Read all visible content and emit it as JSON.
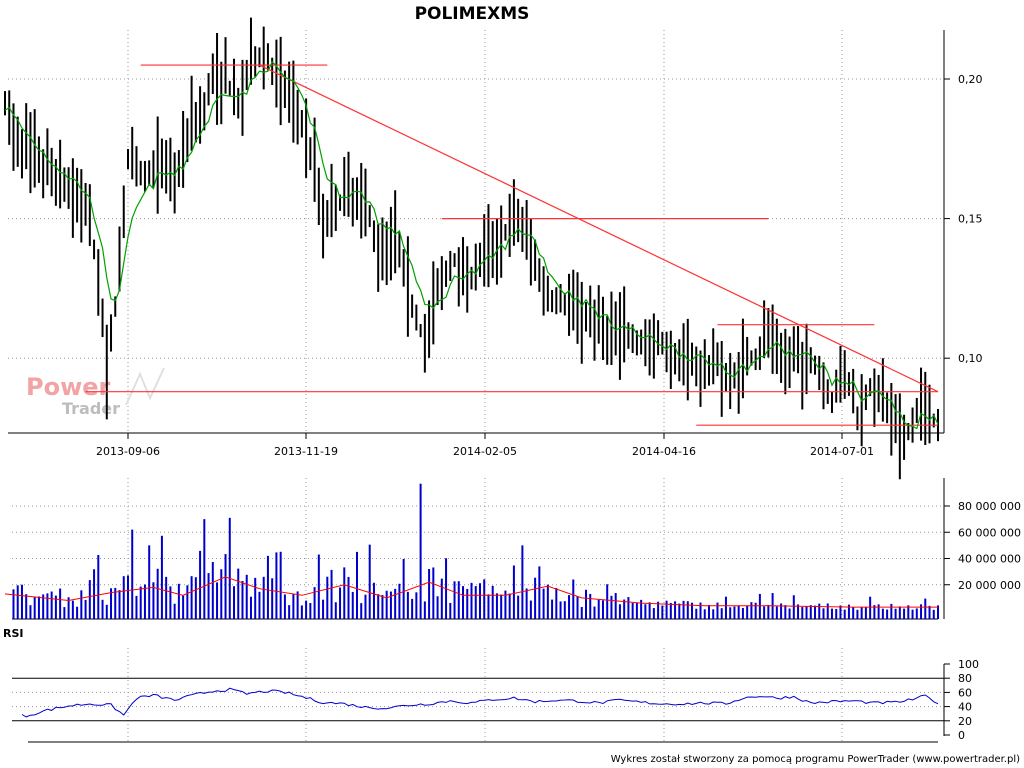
{
  "chart_data": [
    {
      "type": "line",
      "chart_kind": "ohlc-bars-with-moving-average",
      "title": "POLIMEXMS",
      "x_tick_labels": [
        "2013-09-06",
        "2013-11-19",
        "2014-02-05",
        "2014-04-16",
        "2014-07-01"
      ],
      "y_tick_labels": [
        "0,20",
        "0,15",
        "0,10"
      ],
      "y_ticks": [
        0.2,
        0.15,
        0.1
      ],
      "ylim": [
        0.045,
        0.215
      ],
      "grid": true,
      "colors": {
        "bars": "#000000",
        "moving_average": "#00a000",
        "trendlines": "#ff3333"
      },
      "price_path": [
        [
          0,
          0.19
        ],
        [
          2,
          0.18
        ],
        [
          5,
          0.175
        ],
        [
          8,
          0.17
        ],
        [
          12,
          0.165
        ],
        [
          16,
          0.16
        ],
        [
          19,
          0.155
        ],
        [
          22,
          0.13
        ],
        [
          24,
          0.095
        ],
        [
          26,
          0.12
        ],
        [
          29,
          0.17
        ],
        [
          33,
          0.165
        ],
        [
          36,
          0.17
        ],
        [
          40,
          0.165
        ],
        [
          44,
          0.185
        ],
        [
          47,
          0.19
        ],
        [
          49,
          0.2
        ],
        [
          52,
          0.2
        ],
        [
          55,
          0.19
        ],
        [
          58,
          0.205
        ],
        [
          61,
          0.21
        ],
        [
          64,
          0.2
        ],
        [
          67,
          0.195
        ],
        [
          70,
          0.185
        ],
        [
          73,
          0.17
        ],
        [
          75,
          0.15
        ],
        [
          78,
          0.155
        ],
        [
          82,
          0.16
        ],
        [
          85,
          0.155
        ],
        [
          88,
          0.14
        ],
        [
          92,
          0.145
        ],
        [
          96,
          0.12
        ],
        [
          99,
          0.105
        ],
        [
          102,
          0.125
        ],
        [
          106,
          0.135
        ],
        [
          110,
          0.13
        ],
        [
          114,
          0.14
        ],
        [
          118,
          0.145
        ],
        [
          121,
          0.15
        ],
        [
          124,
          0.14
        ],
        [
          127,
          0.125
        ],
        [
          130,
          0.12
        ],
        [
          134,
          0.12
        ],
        [
          138,
          0.115
        ],
        [
          142,
          0.11
        ],
        [
          146,
          0.11
        ],
        [
          150,
          0.105
        ],
        [
          154,
          0.105
        ],
        [
          158,
          0.1
        ],
        [
          162,
          0.1
        ],
        [
          165,
          0.095
        ],
        [
          168,
          0.1
        ],
        [
          171,
          0.09
        ],
        [
          174,
          0.1
        ],
        [
          177,
          0.1
        ],
        [
          180,
          0.11
        ],
        [
          183,
          0.1
        ],
        [
          186,
          0.1
        ],
        [
          189,
          0.1
        ],
        [
          192,
          0.095
        ],
        [
          195,
          0.085
        ],
        [
          198,
          0.095
        ],
        [
          201,
          0.08
        ],
        [
          204,
          0.09
        ],
        [
          207,
          0.085
        ],
        [
          210,
          0.075
        ],
        [
          212,
          0.07
        ],
        [
          214,
          0.075
        ],
        [
          216,
          0.085
        ],
        [
          218,
          0.08
        ],
        [
          220,
          0.075
        ]
      ],
      "trendlines": [
        {
          "name": "resistance-2013-10",
          "x": [
            32,
            76
          ],
          "y": [
            0.205,
            0.205
          ]
        },
        {
          "name": "resistance-2014-02",
          "x": [
            103,
            180
          ],
          "y": [
            0.15,
            0.15
          ]
        },
        {
          "name": "resistance-2014-05",
          "x": [
            168,
            205
          ],
          "y": [
            0.112,
            0.112
          ]
        },
        {
          "name": "downtrend",
          "x": [
            60,
            220
          ],
          "y": [
            0.205,
            0.088
          ]
        },
        {
          "name": "support-high",
          "x": [
            19,
            220
          ],
          "y": [
            0.088,
            0.088
          ]
        },
        {
          "name": "support-low",
          "x": [
            163,
            220
          ],
          "y": [
            0.076,
            0.076
          ]
        }
      ]
    },
    {
      "type": "bar",
      "chart_kind": "volume-with-moving-average",
      "y_tick_labels": [
        "80 000 000",
        "60 000 000",
        "40 000 000",
        "20 000 000"
      ],
      "y_ticks": [
        80000000,
        60000000,
        40000000,
        20000000
      ],
      "ylim": [
        0,
        100000000
      ],
      "grid": true,
      "colors": {
        "bars": "#0000cc",
        "moving_average": "#ff0000"
      },
      "spikes": [
        [
          30,
          62000000
        ],
        [
          34,
          50000000
        ],
        [
          38,
          26000000
        ],
        [
          47,
          70000000
        ],
        [
          53,
          71000000
        ],
        [
          62,
          42000000
        ],
        [
          74,
          43000000
        ],
        [
          98,
          97000000
        ],
        [
          100,
          32000000
        ],
        [
          122,
          50000000
        ],
        [
          126,
          34000000
        ],
        [
          134,
          24000000
        ],
        [
          186,
          12000000
        ]
      ],
      "moving_average": [
        [
          0,
          13000000
        ],
        [
          15,
          8000000
        ],
        [
          25,
          14000000
        ],
        [
          35,
          18000000
        ],
        [
          42,
          12000000
        ],
        [
          52,
          26000000
        ],
        [
          60,
          17000000
        ],
        [
          70,
          12000000
        ],
        [
          80,
          20000000
        ],
        [
          90,
          10000000
        ],
        [
          100,
          22000000
        ],
        [
          108,
          12000000
        ],
        [
          118,
          12000000
        ],
        [
          128,
          19000000
        ],
        [
          136,
          10000000
        ],
        [
          150,
          6000000
        ],
        [
          165,
          4000000
        ],
        [
          180,
          4000000
        ],
        [
          200,
          3000000
        ],
        [
          220,
          3000000
        ]
      ]
    },
    {
      "type": "line",
      "chart_kind": "rsi",
      "panel_label": "RSI",
      "y_tick_labels": [
        "100",
        "80",
        "60",
        "40",
        "20",
        "0"
      ],
      "y_ticks": [
        100,
        80,
        60,
        40,
        20,
        0
      ],
      "ylim": [
        0,
        100
      ],
      "reference_levels": [
        80,
        20
      ],
      "grid": true,
      "colors": {
        "line": "#0000cc",
        "levels": "#000000"
      },
      "path": [
        [
          0,
          28
        ],
        [
          5,
          27
        ],
        [
          10,
          35
        ],
        [
          15,
          41
        ],
        [
          20,
          44
        ],
        [
          25,
          42
        ],
        [
          28,
          28
        ],
        [
          31,
          52
        ],
        [
          35,
          56
        ],
        [
          40,
          49
        ],
        [
          45,
          57
        ],
        [
          49,
          62
        ],
        [
          53,
          64
        ],
        [
          57,
          58
        ],
        [
          62,
          62
        ],
        [
          66,
          60
        ],
        [
          70,
          54
        ],
        [
          75,
          46
        ],
        [
          80,
          44
        ],
        [
          85,
          39
        ],
        [
          90,
          38
        ],
        [
          95,
          42
        ],
        [
          100,
          44
        ],
        [
          105,
          48
        ],
        [
          110,
          45
        ],
        [
          115,
          50
        ],
        [
          120,
          52
        ],
        [
          125,
          47
        ],
        [
          130,
          49
        ],
        [
          135,
          48
        ],
        [
          140,
          45
        ],
        [
          145,
          49
        ],
        [
          150,
          46
        ],
        [
          155,
          44
        ],
        [
          160,
          44
        ],
        [
          165,
          45
        ],
        [
          170,
          44
        ],
        [
          174,
          52
        ],
        [
          178,
          55
        ],
        [
          182,
          52
        ],
        [
          186,
          54
        ],
        [
          190,
          45
        ],
        [
          195,
          47
        ],
        [
          200,
          48
        ],
        [
          205,
          45
        ],
        [
          210,
          46
        ],
        [
          214,
          50
        ],
        [
          217,
          55
        ],
        [
          220,
          45
        ]
      ]
    }
  ],
  "watermark": {
    "power": "Power",
    "trader": "Trader"
  },
  "footer": "Wykres został stworzony za pomocą programu PowerTrader (www.powertrader.pl)"
}
